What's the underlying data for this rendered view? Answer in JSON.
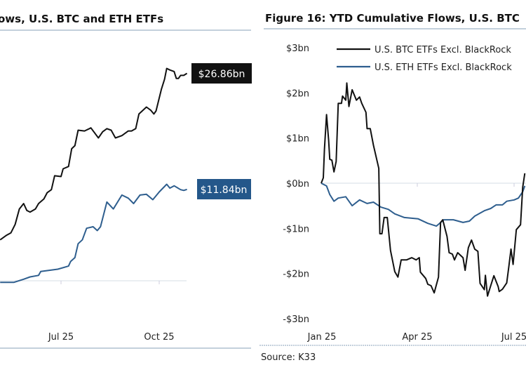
{
  "colors": {
    "btc": "#111111",
    "eth": "#2e5e8e",
    "rule": "#9fb3c8",
    "grid": "#dde3ea",
    "eth_label_bg": "#24578a"
  },
  "chart_data": [
    {
      "type": "line",
      "title": "ows, U.S. BTC and ETH ETFs",
      "x_ticks": [
        "Jul 25",
        "Oct 25"
      ],
      "grid": false,
      "end_labels": {
        "btc": "$26.86bn",
        "eth": "$11.84bn"
      },
      "series": [
        {
          "key": "btc",
          "points": [
            [
              "2025-05-05",
              5.3
            ],
            [
              "2025-05-11",
              5.9
            ],
            [
              "2025-05-15",
              6.2
            ],
            [
              "2025-05-19",
              7.3
            ],
            [
              "2025-05-23",
              9.3
            ],
            [
              "2025-05-27",
              10.0
            ],
            [
              "2025-05-30",
              9.1
            ],
            [
              "2025-06-02",
              8.9
            ],
            [
              "2025-06-07",
              9.3
            ],
            [
              "2025-06-10",
              10.0
            ],
            [
              "2025-06-15",
              10.6
            ],
            [
              "2025-06-18",
              11.4
            ],
            [
              "2025-06-22",
              11.8
            ],
            [
              "2025-06-25",
              13.6
            ],
            [
              "2025-07-01",
              13.5
            ],
            [
              "2025-07-03",
              14.5
            ],
            [
              "2025-07-08",
              14.8
            ],
            [
              "2025-07-11",
              17.1
            ],
            [
              "2025-07-14",
              17.5
            ],
            [
              "2025-07-17",
              19.5
            ],
            [
              "2025-07-23",
              19.4
            ],
            [
              "2025-07-29",
              19.8
            ],
            [
              "2025-08-05",
              18.5
            ],
            [
              "2025-08-09",
              19.3
            ],
            [
              "2025-08-13",
              19.7
            ],
            [
              "2025-08-17",
              19.5
            ],
            [
              "2025-08-21",
              18.5
            ],
            [
              "2025-08-27",
              18.8
            ],
            [
              "2025-09-02",
              19.4
            ],
            [
              "2025-09-05",
              19.4
            ],
            [
              "2025-09-09",
              19.7
            ],
            [
              "2025-09-12",
              21.6
            ],
            [
              "2025-09-19",
              22.5
            ],
            [
              "2025-09-23",
              22.1
            ],
            [
              "2025-09-26",
              21.6
            ],
            [
              "2025-09-28",
              22.0
            ],
            [
              "2025-10-03",
              24.8
            ],
            [
              "2025-10-06",
              26.1
            ],
            [
              "2025-10-08",
              27.5
            ],
            [
              "2025-10-11",
              27.3
            ],
            [
              "2025-10-15",
              27.1
            ],
            [
              "2025-10-17",
              26.2
            ],
            [
              "2025-10-19",
              26.2
            ],
            [
              "2025-10-21",
              26.6
            ],
            [
              "2025-10-24",
              26.6
            ],
            [
              "2025-10-27",
              26.86
            ]
          ]
        },
        {
          "key": "eth",
          "points": [
            [
              "2025-05-05",
              -0.2
            ],
            [
              "2025-05-18",
              -0.2
            ],
            [
              "2025-05-27",
              0.2
            ],
            [
              "2025-06-02",
              0.5
            ],
            [
              "2025-06-10",
              0.7
            ],
            [
              "2025-06-12",
              1.2
            ],
            [
              "2025-06-28",
              1.5
            ],
            [
              "2025-07-08",
              1.9
            ],
            [
              "2025-07-10",
              2.5
            ],
            [
              "2025-07-14",
              3.0
            ],
            [
              "2025-07-17",
              4.8
            ],
            [
              "2025-07-21",
              5.3
            ],
            [
              "2025-07-25",
              6.8
            ],
            [
              "2025-07-31",
              7.0
            ],
            [
              "2025-08-04",
              6.5
            ],
            [
              "2025-08-07",
              7.0
            ],
            [
              "2025-08-13",
              10.2
            ],
            [
              "2025-08-19",
              9.3
            ],
            [
              "2025-08-27",
              11.1
            ],
            [
              "2025-09-02",
              10.7
            ],
            [
              "2025-09-07",
              10.0
            ],
            [
              "2025-09-13",
              11.1
            ],
            [
              "2025-09-19",
              11.2
            ],
            [
              "2025-09-25",
              10.5
            ],
            [
              "2025-10-01",
              11.5
            ],
            [
              "2025-10-08",
              12.5
            ],
            [
              "2025-10-11",
              12.0
            ],
            [
              "2025-10-15",
              12.3
            ],
            [
              "2025-10-21",
              11.8
            ],
            [
              "2025-10-24",
              11.7
            ],
            [
              "2025-10-27",
              11.84
            ]
          ]
        }
      ]
    },
    {
      "type": "line",
      "title": "Figure 16: YTD Cumulative Flows, U.S. BTC",
      "y_ticks": [
        "$3bn",
        "$2bn",
        "$1bn",
        "$0bn",
        "-$1bn",
        "-$2bn",
        "-$3bn"
      ],
      "ylim": [
        -3,
        3
      ],
      "x_ticks": [
        "Jan 25",
        "Apr 25",
        "Jul 25"
      ],
      "grid": false,
      "legend_position": "top",
      "source": "Source: K33",
      "series": [
        {
          "key": "btc",
          "name": "U.S. BTC ETFs Excl. BlackRock",
          "points": [
            [
              "2025-01-01",
              0.0
            ],
            [
              "2025-01-03",
              0.12
            ],
            [
              "2025-01-04",
              0.75
            ],
            [
              "2025-01-06",
              1.52
            ],
            [
              "2025-01-08",
              0.95
            ],
            [
              "2025-01-09",
              0.53
            ],
            [
              "2025-01-11",
              0.51
            ],
            [
              "2025-01-13",
              0.25
            ],
            [
              "2025-01-15",
              0.48
            ],
            [
              "2025-01-17",
              1.77
            ],
            [
              "2025-01-20",
              1.77
            ],
            [
              "2025-01-21",
              1.93
            ],
            [
              "2025-01-24",
              1.84
            ],
            [
              "2025-01-25",
              2.22
            ],
            [
              "2025-01-27",
              1.7
            ],
            [
              "2025-01-30",
              2.07
            ],
            [
              "2025-02-03",
              1.84
            ],
            [
              "2025-02-06",
              1.91
            ],
            [
              "2025-02-08",
              1.77
            ],
            [
              "2025-02-12",
              1.57
            ],
            [
              "2025-02-13",
              1.21
            ],
            [
              "2025-02-16",
              1.21
            ],
            [
              "2025-02-19",
              0.84
            ],
            [
              "2025-02-24",
              0.33
            ],
            [
              "2025-02-25",
              -1.12
            ],
            [
              "2025-02-27",
              -1.12
            ],
            [
              "2025-03-01",
              -0.76
            ],
            [
              "2025-03-04",
              -0.76
            ],
            [
              "2025-03-07",
              -1.49
            ],
            [
              "2025-03-11",
              -1.96
            ],
            [
              "2025-03-14",
              -2.08
            ],
            [
              "2025-03-17",
              -1.7
            ],
            [
              "2025-03-22",
              -1.7
            ],
            [
              "2025-03-27",
              -1.65
            ],
            [
              "2025-03-31",
              -1.7
            ],
            [
              "2025-04-03",
              -1.65
            ],
            [
              "2025-04-04",
              -1.97
            ],
            [
              "2025-04-09",
              -2.11
            ],
            [
              "2025-04-11",
              -2.24
            ],
            [
              "2025-04-14",
              -2.27
            ],
            [
              "2025-04-17",
              -2.43
            ],
            [
              "2025-04-21",
              -2.08
            ],
            [
              "2025-04-23",
              -0.87
            ],
            [
              "2025-04-25",
              -0.81
            ],
            [
              "2025-04-29",
              -1.18
            ],
            [
              "2025-05-01",
              -1.54
            ],
            [
              "2025-05-04",
              -1.57
            ],
            [
              "2025-05-06",
              -1.7
            ],
            [
              "2025-05-09",
              -1.54
            ],
            [
              "2025-05-14",
              -1.65
            ],
            [
              "2025-05-16",
              -1.93
            ],
            [
              "2025-05-19",
              -1.43
            ],
            [
              "2025-05-22",
              -1.26
            ],
            [
              "2025-05-25",
              -1.46
            ],
            [
              "2025-05-28",
              -1.51
            ],
            [
              "2025-05-30",
              -2.22
            ],
            [
              "2025-06-03",
              -2.36
            ],
            [
              "2025-06-04",
              -2.04
            ],
            [
              "2025-06-06",
              -2.5
            ],
            [
              "2025-06-09",
              -2.27
            ],
            [
              "2025-06-12",
              -2.05
            ],
            [
              "2025-06-16",
              -2.29
            ],
            [
              "2025-06-17",
              -2.4
            ],
            [
              "2025-06-20",
              -2.35
            ],
            [
              "2025-06-24",
              -2.21
            ],
            [
              "2025-06-26",
              -1.85
            ],
            [
              "2025-06-28",
              -1.46
            ],
            [
              "2025-06-30",
              -1.8
            ],
            [
              "2025-07-03",
              -1.03
            ],
            [
              "2025-07-07",
              -0.92
            ],
            [
              "2025-07-09",
              -0.09
            ],
            [
              "2025-07-11",
              0.22
            ]
          ]
        },
        {
          "key": "eth",
          "name": "U.S. ETH ETFs Excl. BlackRock",
          "points": [
            [
              "2025-01-01",
              0.0
            ],
            [
              "2025-01-06",
              -0.06
            ],
            [
              "2025-01-09",
              -0.25
            ],
            [
              "2025-01-13",
              -0.4
            ],
            [
              "2025-01-17",
              -0.33
            ],
            [
              "2025-01-24",
              -0.3
            ],
            [
              "2025-01-30",
              -0.5
            ],
            [
              "2025-02-06",
              -0.37
            ],
            [
              "2025-02-13",
              -0.45
            ],
            [
              "2025-02-19",
              -0.42
            ],
            [
              "2025-02-26",
              -0.53
            ],
            [
              "2025-03-05",
              -0.58
            ],
            [
              "2025-03-11",
              -0.68
            ],
            [
              "2025-03-20",
              -0.76
            ],
            [
              "2025-04-02",
              -0.79
            ],
            [
              "2025-04-11",
              -0.89
            ],
            [
              "2025-04-19",
              -0.95
            ],
            [
              "2025-04-26",
              -0.81
            ],
            [
              "2025-05-05",
              -0.81
            ],
            [
              "2025-05-14",
              -0.87
            ],
            [
              "2025-05-20",
              -0.84
            ],
            [
              "2025-05-25",
              -0.73
            ],
            [
              "2025-06-03",
              -0.61
            ],
            [
              "2025-06-09",
              -0.56
            ],
            [
              "2025-06-14",
              -0.48
            ],
            [
              "2025-06-20",
              -0.48
            ],
            [
              "2025-06-24",
              -0.4
            ],
            [
              "2025-07-01",
              -0.37
            ],
            [
              "2025-07-05",
              -0.33
            ],
            [
              "2025-07-09",
              -0.19
            ],
            [
              "2025-07-11",
              -0.06
            ]
          ]
        }
      ]
    }
  ]
}
